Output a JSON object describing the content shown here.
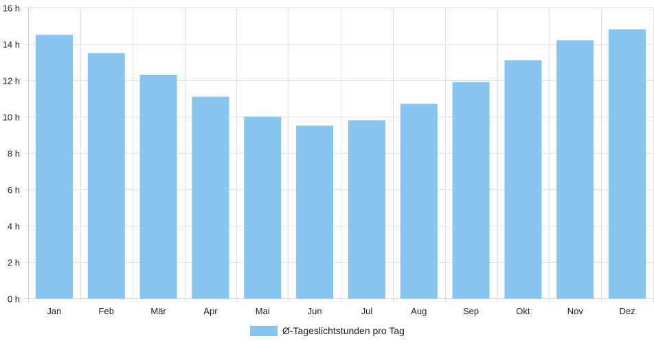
{
  "chart_data": {
    "type": "bar",
    "categories": [
      "Jan",
      "Feb",
      "Mär",
      "Apr",
      "Mai",
      "Jun",
      "Jul",
      "Aug",
      "Sep",
      "Okt",
      "Nov",
      "Dez"
    ],
    "series": [
      {
        "name": "Ø-Tageslichtstunden pro Tag",
        "values": [
          14.5,
          13.5,
          12.3,
          11.1,
          10.0,
          9.5,
          9.8,
          10.7,
          11.9,
          13.1,
          14.2,
          14.8
        ],
        "color": "#87c6f0"
      }
    ],
    "ylim": [
      0,
      16
    ],
    "yticks": [
      0,
      2,
      4,
      6,
      8,
      10,
      12,
      14,
      16
    ],
    "ytick_suffix": " h",
    "grid": true,
    "legend_position": "bottom"
  },
  "colors": {
    "grid": "#e2e2e2",
    "axis": "#cfcfcf",
    "bar": "#87c6f0"
  }
}
